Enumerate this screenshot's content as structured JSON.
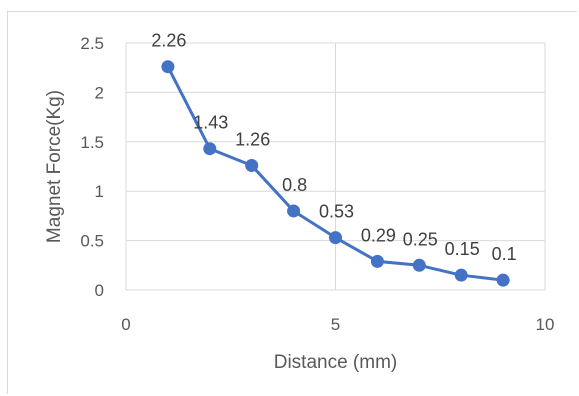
{
  "colors": {
    "series": "#4472c4",
    "grid": "#d9d9d9",
    "text": "#595959"
  },
  "chart_data": {
    "type": "scatter",
    "title": "",
    "xlabel": "Distance (mm)",
    "ylabel": "Magnet Force(Kg)",
    "xlim": [
      0,
      10
    ],
    "ylim": [
      0,
      2.5
    ],
    "x_ticks": [
      "0",
      "5",
      "10"
    ],
    "y_ticks": [
      "0",
      "0.5",
      "1",
      "1.5",
      "2",
      "2.5"
    ],
    "grid": true,
    "legend": "none",
    "series": [
      {
        "x": [
          1,
          2,
          3,
          4,
          5,
          6,
          7,
          8,
          9
        ],
        "y": [
          2.26,
          1.43,
          1.26,
          0.8,
          0.53,
          0.29,
          0.25,
          0.15,
          0.1
        ],
        "labels": [
          "2.26",
          "1.43",
          "1.26",
          "0.8",
          "0.53",
          "0.29",
          "0.25",
          "0.15",
          "0.1"
        ],
        "connected": true,
        "color": "#4472c4"
      }
    ]
  }
}
